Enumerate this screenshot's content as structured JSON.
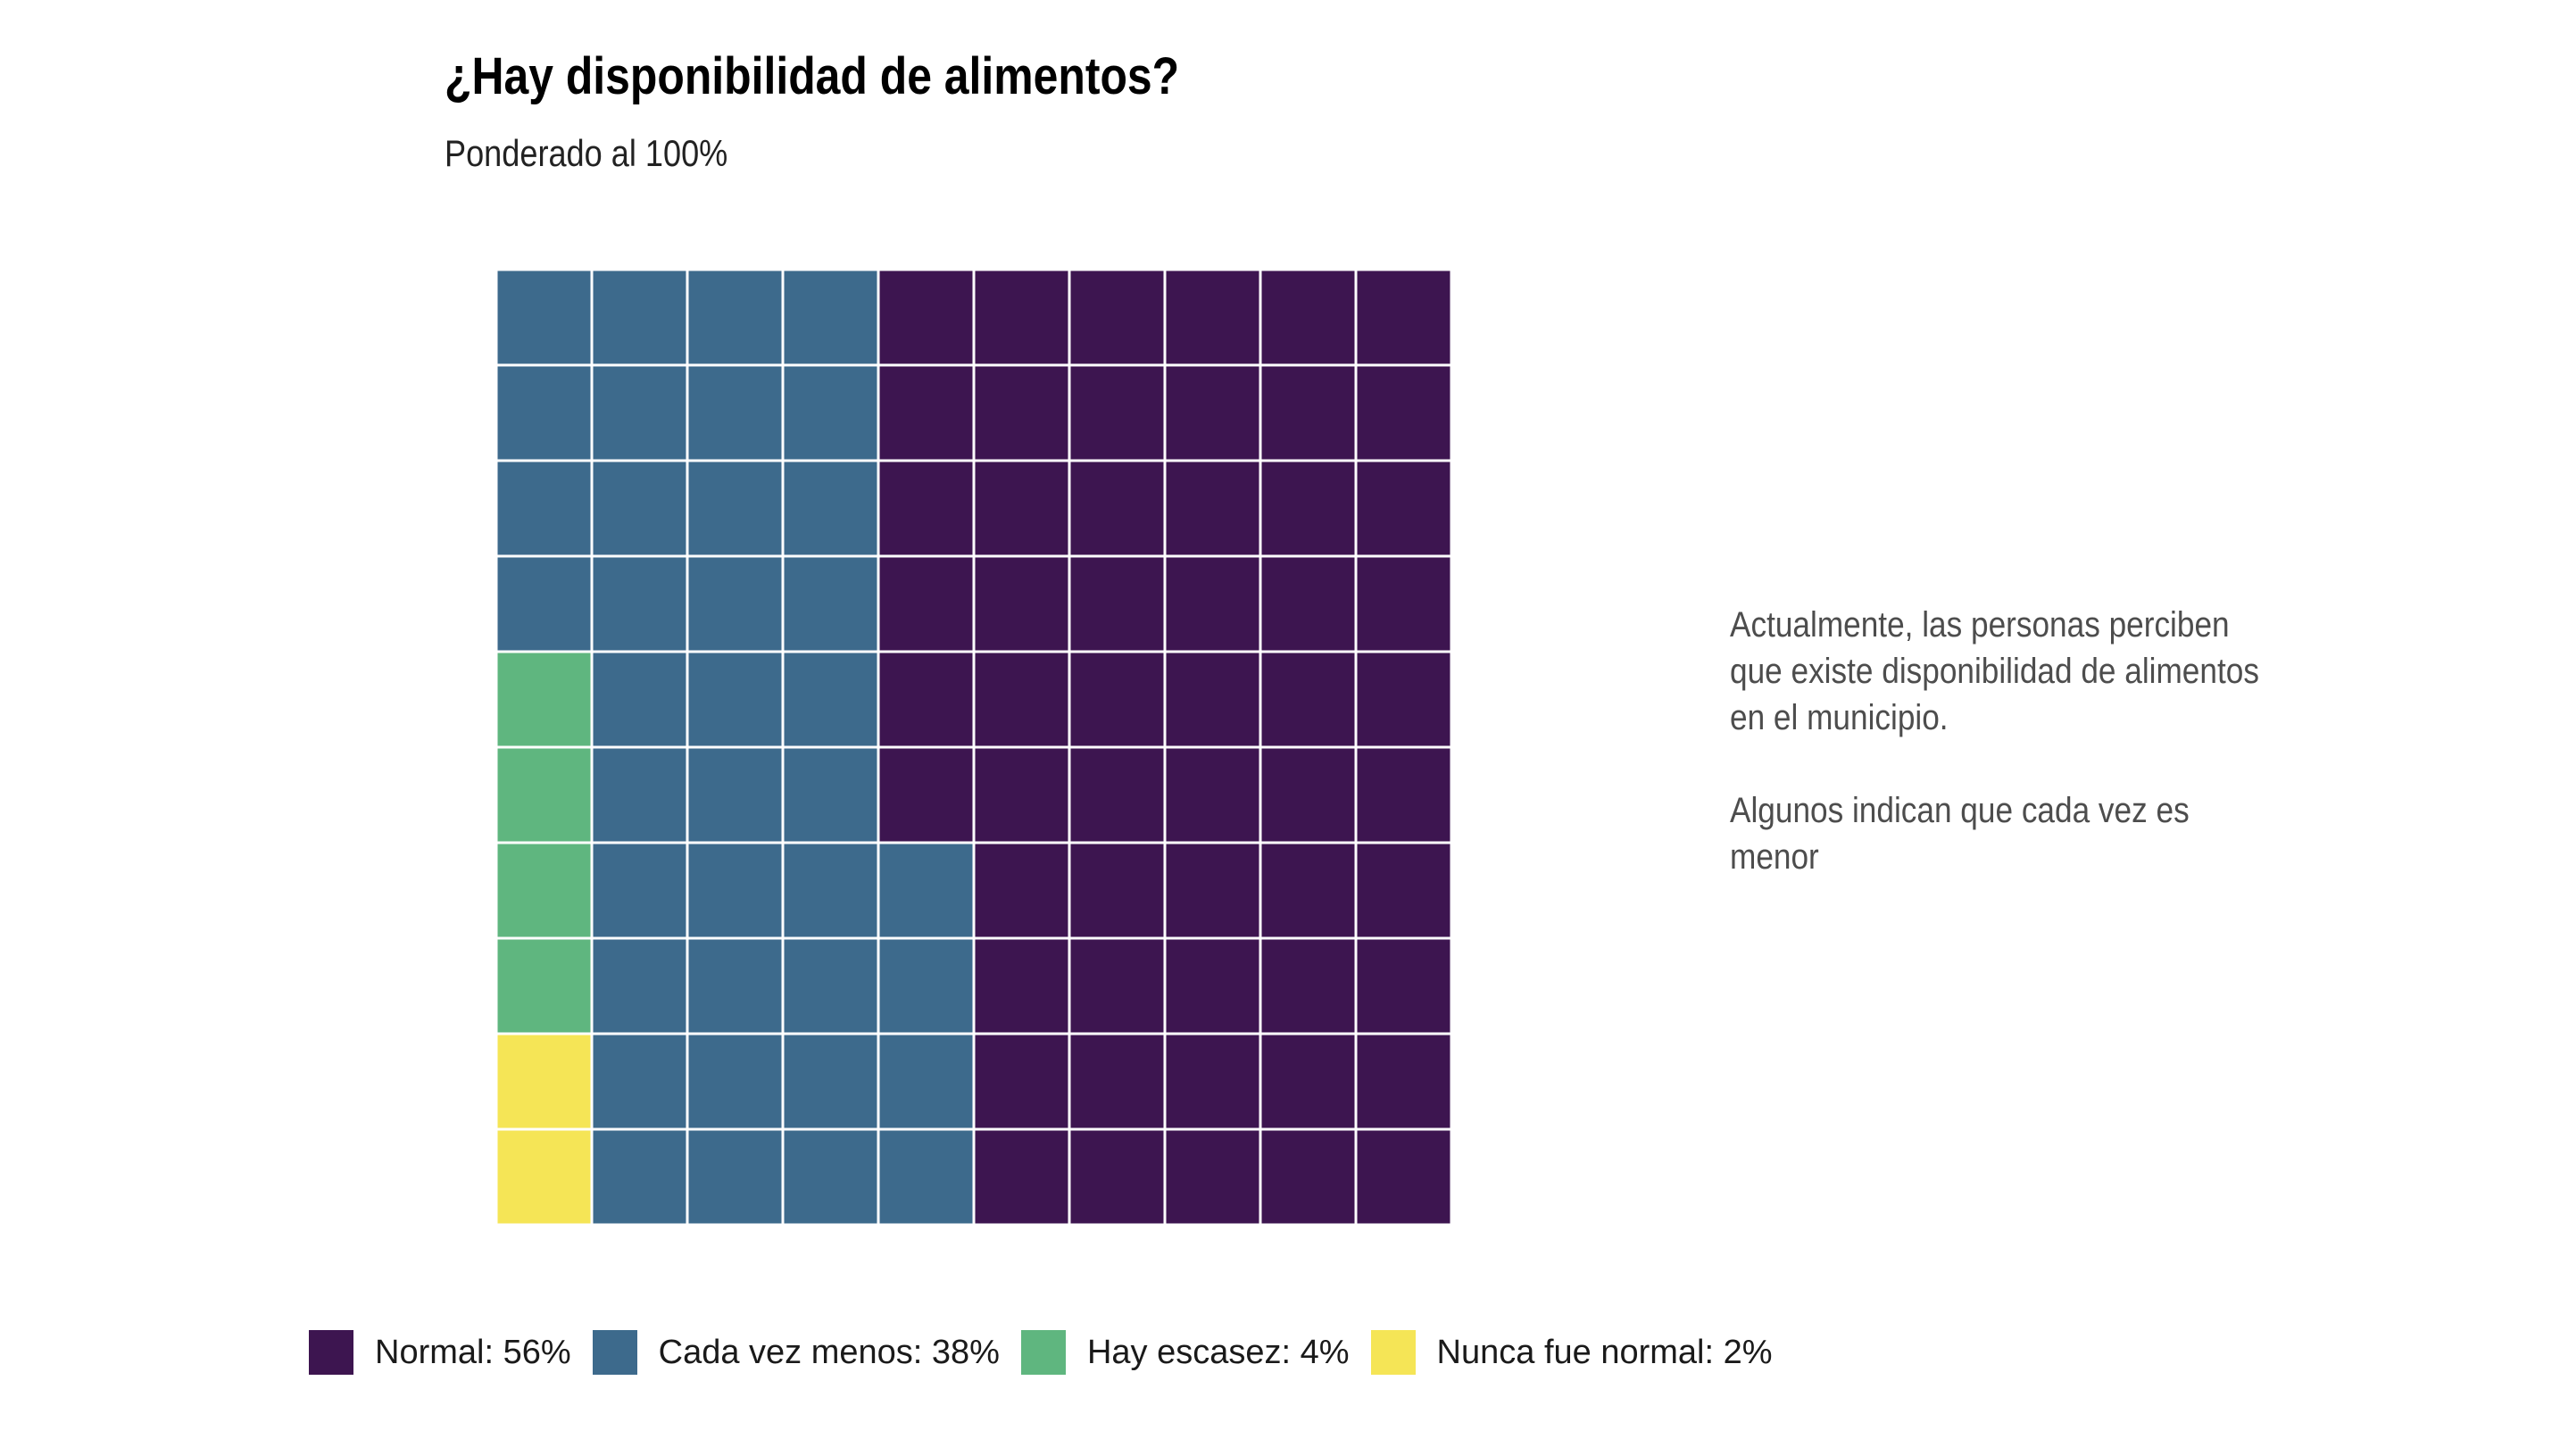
{
  "title": "¿Hay disponibilidad de alimentos?",
  "subtitle": "Ponderado al 100%",
  "annotation": {
    "paragraph_1": "Actualmente, las personas perciben que existe disponibilidad de alimentos en el municipio.",
    "paragraph_2": "Algunos indican que cada vez es menor"
  },
  "chart_data": {
    "type": "waffle",
    "grid": {
      "rows": 10,
      "columns": 10
    },
    "total": 100,
    "series": [
      {
        "name": "Normal",
        "label": "Normal: 56%",
        "value": 56,
        "color": "#3d1550"
      },
      {
        "name": "Cada vez menos",
        "label": "Cada vez menos: 38%",
        "value": 38,
        "color": "#3d6a8c"
      },
      {
        "name": "Hay escasez",
        "label": "Hay escasez: 4%",
        "value": 4,
        "color": "#5fb67f"
      },
      {
        "name": "Nunca fue normal",
        "label": "Nunca fue normal: 2%",
        "value": 2,
        "color": "#f5e556"
      }
    ],
    "legend_position": "bottom",
    "tile_border_color": "#ffffff"
  }
}
